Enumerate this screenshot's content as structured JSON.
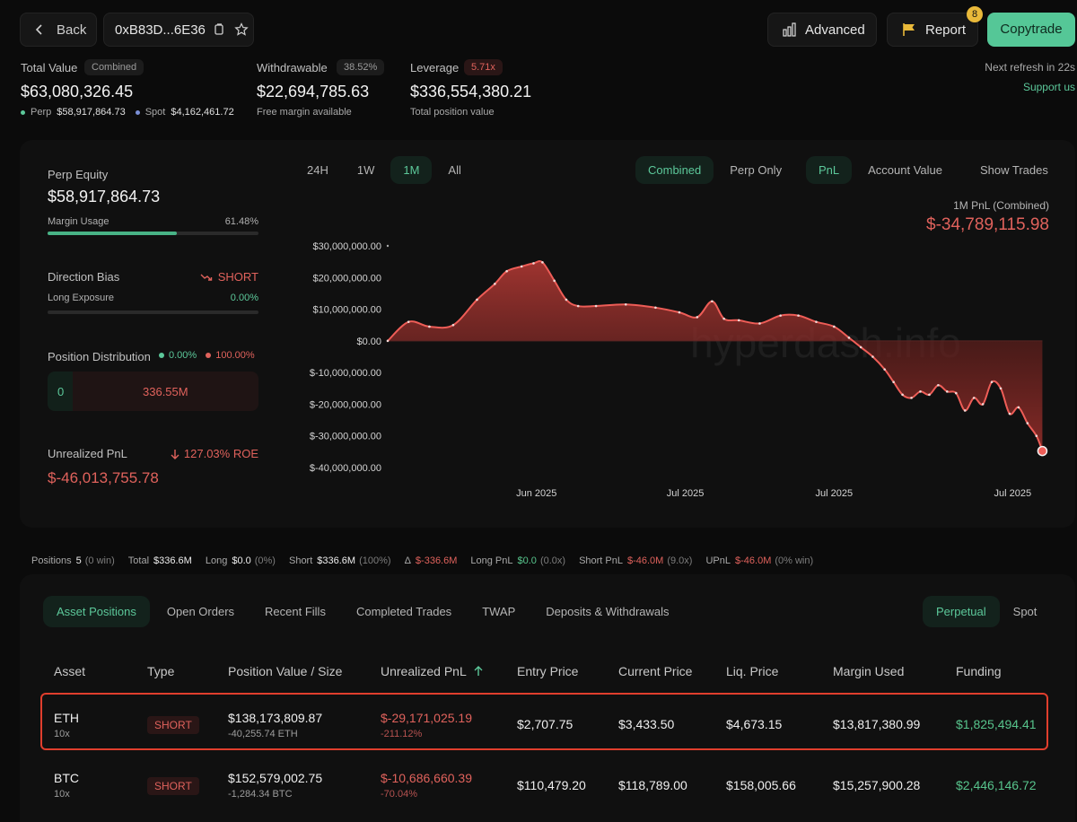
{
  "header": {
    "back_label": "Back",
    "address": "0xB83D...6E36",
    "advanced_label": "Advanced",
    "report_label": "Report",
    "report_badge": "8",
    "copytrade_label": "Copytrade",
    "refresh_text": "Next refresh in 22s",
    "support_label": "Support us"
  },
  "summary": {
    "total_value_label": "Total Value",
    "total_value_chip": "Combined",
    "total_value": "$63,080,326.45",
    "perp_label": "Perp",
    "perp_value": "$58,917,864.73",
    "spot_label": "Spot",
    "spot_value": "$4,162,461.72",
    "withdrawable_label": "Withdrawable",
    "withdrawable_chip": "38.52%",
    "withdrawable_value": "$22,694,785.63",
    "withdrawable_sub": "Free margin available",
    "leverage_label": "Leverage",
    "leverage_chip": "5.71x",
    "leverage_value": "$336,554,380.21",
    "leverage_sub": "Total position value"
  },
  "left_panel": {
    "perp_equity_label": "Perp Equity",
    "perp_equity_value": "$58,917,864.73",
    "margin_usage_label": "Margin Usage",
    "margin_usage_value": "61.48%",
    "margin_usage_fraction": 0.6148,
    "direction_bias_label": "Direction Bias",
    "direction_bias_value": "SHORT",
    "long_exposure_label": "Long Exposure",
    "long_exposure_value": "0.00%",
    "long_exposure_fraction": 0.0,
    "position_dist_label": "Position Distribution",
    "position_dist_long": "0.00%",
    "position_dist_short": "100.00%",
    "dist_left": "0",
    "dist_right": "336.55M",
    "upnl_label": "Unrealized PnL",
    "upnl_roe": "127.03% ROE",
    "upnl_value": "$-46,013,755.78"
  },
  "chart_controls": {
    "ranges": [
      "24H",
      "1W",
      "1M",
      "All"
    ],
    "active_range": "1M",
    "modes": [
      "Combined",
      "Perp Only"
    ],
    "active_mode": "Combined",
    "metrics": [
      "PnL",
      "Account Value"
    ],
    "active_metric": "PnL",
    "show_trades_label": "Show Trades",
    "pnl_caption": "1M PnL (Combined)",
    "pnl_value": "$-34,789,115.98",
    "watermark": "hyperdash.info"
  },
  "chart_data": {
    "type": "area",
    "y_ticks": [
      "$30,000,000.00",
      "$20,000,000.00",
      "$10,000,000.00",
      "$0.00",
      "$-10,000,000.00",
      "$-20,000,000.00",
      "$-30,000,000.00",
      "$-40,000,000.00"
    ],
    "ylim": [
      -40000000,
      30000000
    ],
    "x_ticks": [
      "Jun 2025",
      "Jul 2025",
      "Jul 2025",
      "Jul 2025"
    ],
    "x_tick_positions": [
      5,
      10,
      15,
      21
    ],
    "xlim": [
      0,
      22.5
    ],
    "x": [
      0,
      0.7,
      1.4,
      2.2,
      3.0,
      3.6,
      4.0,
      4.5,
      4.9,
      5.2,
      5.6,
      6.0,
      6.4,
      7.0,
      8.0,
      9.0,
      9.8,
      10.4,
      10.9,
      11.3,
      11.8,
      12.5,
      13.2,
      13.8,
      14.4,
      15.0,
      15.5,
      15.9,
      16.3,
      16.7,
      17.0,
      17.3,
      17.6,
      17.9,
      18.2,
      18.5,
      18.8,
      19.1,
      19.4,
      19.7,
      20.0,
      20.3,
      20.6,
      20.9,
      21.2,
      21.5,
      21.8,
      22.0
    ],
    "y": [
      0,
      6000000,
      4500000,
      5000000,
      13000000,
      18000000,
      22000000,
      23500000,
      24500000,
      24800000,
      19000000,
      13000000,
      11000000,
      11000000,
      11500000,
      10500000,
      9000000,
      7500000,
      12500000,
      7000000,
      6500000,
      5500000,
      8000000,
      8000000,
      6000000,
      4500000,
      1000000,
      -2000000,
      -5000000,
      -9000000,
      -13000000,
      -17000000,
      -18000000,
      -16000000,
      -17000000,
      -14000000,
      -16000000,
      -16500000,
      -22000000,
      -18000000,
      -20000000,
      -13000000,
      -15000000,
      -23000000,
      -21000000,
      -26000000,
      -30000000,
      -34789116
    ]
  },
  "stats": {
    "positions_label": "Positions",
    "positions_value": "5",
    "positions_sub": "(0 win)",
    "total_label": "Total",
    "total_value": "$336.6M",
    "long_label": "Long",
    "long_value": "$0.0",
    "long_sub": "(0%)",
    "short_label": "Short",
    "short_value": "$336.6M",
    "short_sub": "(100%)",
    "delta_label": "Δ",
    "delta_value": "$-336.6M",
    "longpnl_label": "Long PnL",
    "longpnl_value": "$0.0",
    "longpnl_sub": "(0.0x)",
    "shortpnl_label": "Short PnL",
    "shortpnl_value": "$-46.0M",
    "shortpnl_sub": "(9.0x)",
    "upnl_label": "UPnL",
    "upnl_value": "$-46.0M",
    "upnl_sub": "(0% win)"
  },
  "tabs": {
    "items": [
      "Asset Positions",
      "Open Orders",
      "Recent Fills",
      "Completed Trades",
      "TWAP",
      "Deposits & Withdrawals"
    ],
    "active": "Asset Positions",
    "right_items": [
      "Perpetual",
      "Spot"
    ],
    "right_active": "Perpetual"
  },
  "table": {
    "headers": [
      "Asset",
      "Type",
      "Position Value / Size",
      "Unrealized PnL",
      "Entry Price",
      "Current Price",
      "Liq. Price",
      "Margin Used",
      "Funding"
    ],
    "rows": [
      {
        "asset": "ETH",
        "lev": "10x",
        "type": "SHORT",
        "value": "$138,173,809.87",
        "size": "-40,255.74 ETH",
        "pnl": "$-29,171,025.19",
        "pnl_pct": "-211.12%",
        "entry": "$2,707.75",
        "current": "$3,433.50",
        "liq": "$4,673.15",
        "margin": "$13,817,380.99",
        "funding": "$1,825,494.41"
      },
      {
        "asset": "BTC",
        "lev": "10x",
        "type": "SHORT",
        "value": "$152,579,002.75",
        "size": "-1,284.34 BTC",
        "pnl": "$-10,686,660.39",
        "pnl_pct": "-70.04%",
        "entry": "$110,479.20",
        "current": "$118,789.00",
        "liq": "$158,005.66",
        "margin": "$15,257,900.28",
        "funding": "$2,446,146.72"
      }
    ]
  },
  "colors": {
    "accent": "#5cc89a",
    "negative": "#e0625c",
    "positive": "#57c48c",
    "highlight": "#e03e2d"
  }
}
